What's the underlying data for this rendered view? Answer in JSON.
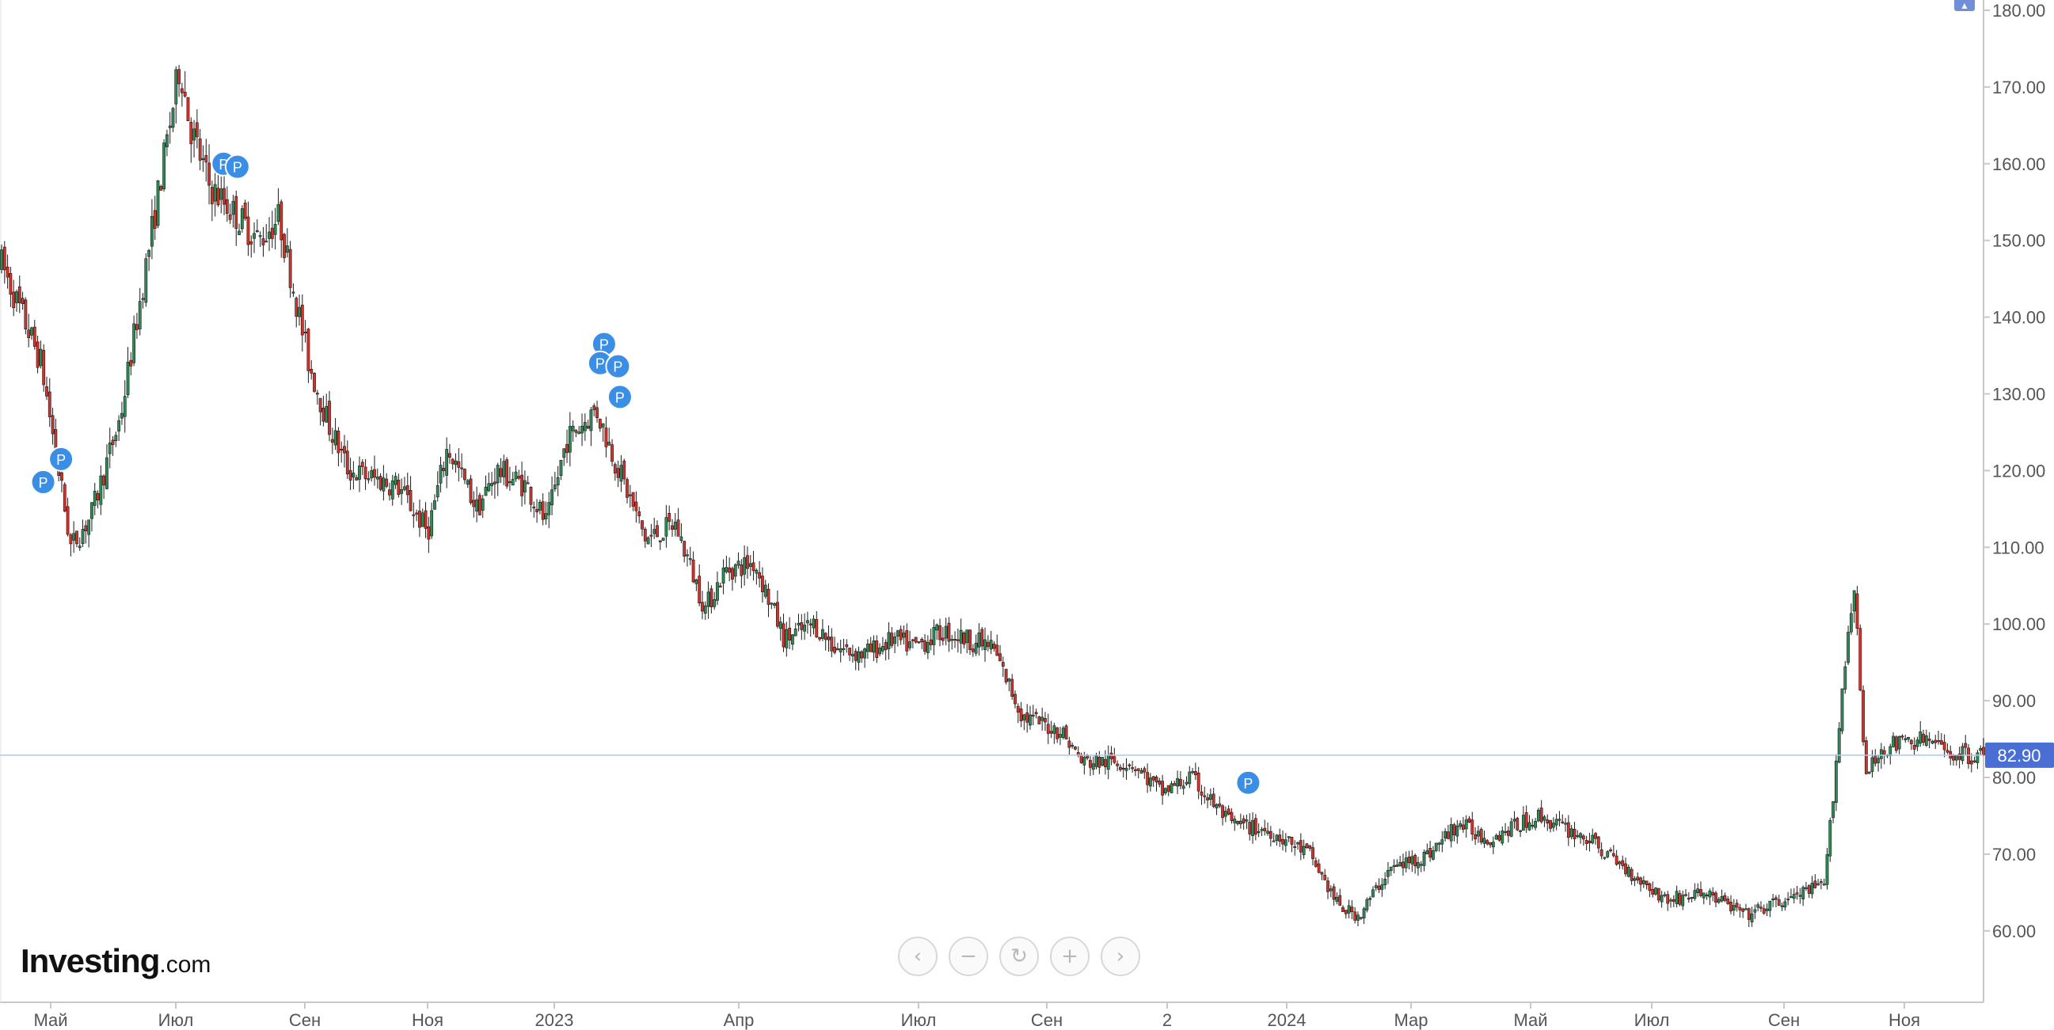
{
  "chart_data": {
    "type": "candlestick",
    "y_axis": {
      "ticks": [
        "180.00",
        "170.00",
        "160.00",
        "150.00",
        "140.00",
        "130.00",
        "120.00",
        "110.00",
        "100.00",
        "90.00",
        "80.00",
        "70.00",
        "60.00"
      ],
      "ylim": [
        51.5,
        181.5
      ],
      "position": "right"
    },
    "x_axis": {
      "ticks": [
        "Май",
        "Июл",
        "Сен",
        "Ноя",
        "2023",
        "Апр",
        "Июл",
        "Сен",
        "2",
        "2024",
        "Мар",
        "Май",
        "Июл",
        "Сен",
        "Ноя"
      ]
    },
    "last_price": "82.90",
    "last_price_value": 82.9,
    "grid": false,
    "price_path": [
      [
        0,
        147
      ],
      [
        0.02,
        134
      ],
      [
        0.035,
        110
      ],
      [
        0.045,
        114
      ],
      [
        0.06,
        127
      ],
      [
        0.075,
        150
      ],
      [
        0.09,
        173
      ],
      [
        0.095,
        165
      ],
      [
        0.105,
        157
      ],
      [
        0.13,
        150
      ],
      [
        0.14,
        153
      ],
      [
        0.155,
        134
      ],
      [
        0.165,
        126
      ],
      [
        0.175,
        120
      ],
      [
        0.2,
        118
      ],
      [
        0.215,
        112
      ],
      [
        0.225,
        123
      ],
      [
        0.24,
        115
      ],
      [
        0.25,
        120
      ],
      [
        0.265,
        118
      ],
      [
        0.275,
        113
      ],
      [
        0.285,
        124
      ],
      [
        0.3,
        128
      ],
      [
        0.31,
        121
      ],
      [
        0.325,
        111
      ],
      [
        0.34,
        113
      ],
      [
        0.355,
        102
      ],
      [
        0.365,
        107
      ],
      [
        0.38,
        108
      ],
      [
        0.395,
        98
      ],
      [
        0.41,
        100
      ],
      [
        0.42,
        97
      ],
      [
        0.435,
        96
      ],
      [
        0.45,
        98
      ],
      [
        0.46,
        97
      ],
      [
        0.475,
        99
      ],
      [
        0.5,
        97
      ],
      [
        0.515,
        88
      ],
      [
        0.535,
        86
      ],
      [
        0.545,
        82
      ],
      [
        0.57,
        82
      ],
      [
        0.585,
        78
      ],
      [
        0.6,
        80
      ],
      [
        0.62,
        74
      ],
      [
        0.64,
        73
      ],
      [
        0.66,
        70
      ],
      [
        0.675,
        63
      ],
      [
        0.685,
        62
      ],
      [
        0.7,
        68
      ],
      [
        0.72,
        70
      ],
      [
        0.735,
        74
      ],
      [
        0.75,
        72
      ],
      [
        0.775,
        75
      ],
      [
        0.8,
        72
      ],
      [
        0.82,
        68
      ],
      [
        0.84,
        64
      ],
      [
        0.86,
        65
      ],
      [
        0.88,
        62
      ],
      [
        0.9,
        64
      ],
      [
        0.92,
        66
      ],
      [
        0.93,
        95
      ],
      [
        0.935,
        106
      ],
      [
        0.94,
        80
      ],
      [
        0.95,
        84
      ],
      [
        0.97,
        85
      ],
      [
        0.985,
        83
      ],
      [
        1,
        82.9
      ]
    ],
    "markers": [
      {
        "label": "P",
        "pos": 0.021,
        "price": 118.5
      },
      {
        "label": "P",
        "pos": 0.03,
        "price": 121.5
      },
      {
        "label": "P",
        "pos": 0.112,
        "price": 160.0
      },
      {
        "label": "P",
        "pos": 0.119,
        "price": 159.6
      },
      {
        "label": "P",
        "pos": 0.304,
        "price": 136.5
      },
      {
        "label": "P",
        "pos": 0.302,
        "price": 134.0
      },
      {
        "label": "P",
        "pos": 0.311,
        "price": 133.6
      },
      {
        "label": "P",
        "pos": 0.312,
        "price": 129.6
      },
      {
        "label": "P",
        "pos": 0.629,
        "price": 79.3
      }
    ],
    "colors": {
      "up": "#2e8b57",
      "down": "#d0342c",
      "price_line": "#a8c8f0",
      "badge": "#4a6fd4",
      "marker": "#3a8ee6"
    }
  },
  "logo": {
    "brand": "Investing",
    "suffix": ".com"
  },
  "nav": {
    "prev": "‹",
    "zoom_out": "−",
    "reset": "↻",
    "zoom_in": "+",
    "next": "›"
  }
}
